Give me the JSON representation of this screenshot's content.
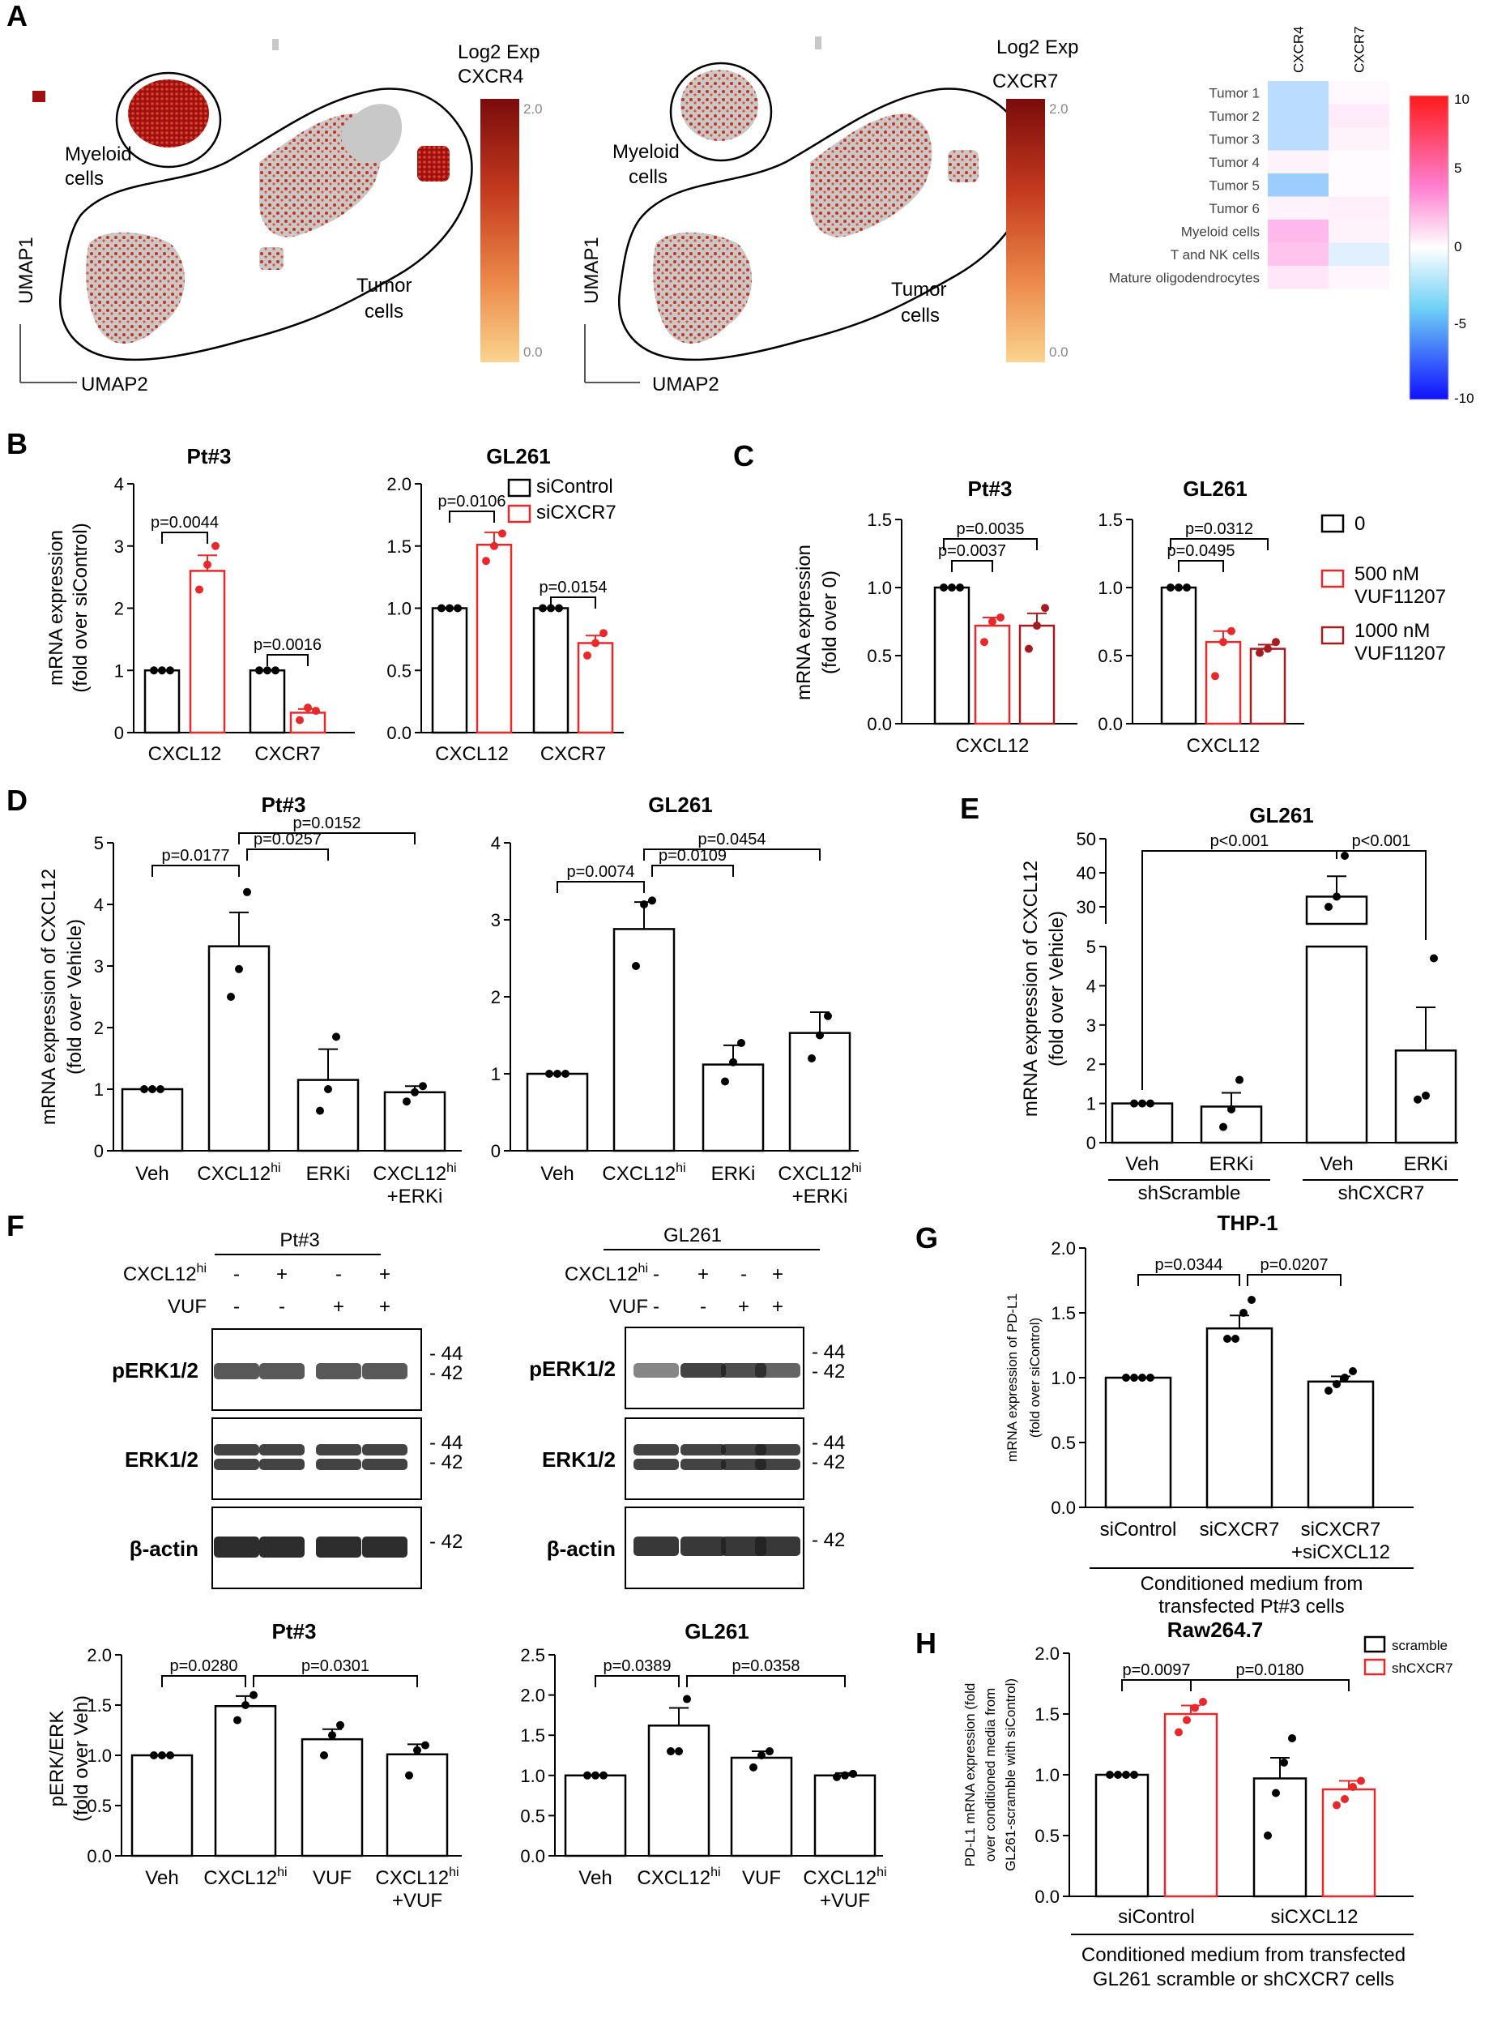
{
  "panel_labels": [
    "A",
    "B",
    "C",
    "D",
    "E",
    "F",
    "G",
    "H"
  ],
  "panelA": {
    "umap1": {
      "legend_title_1": "Log2 Exp",
      "legend_title_2": "CXCR4",
      "tick_max": "2.0",
      "tick_min": "0.0",
      "label_myeloid_1": "Myeloid",
      "label_myeloid_2": "cells",
      "label_tumor_1": "Tumor",
      "label_tumor_2": "cells",
      "axis_y": "UMAP1",
      "axis_x": "UMAP2"
    },
    "umap2": {
      "legend_title_1": "Log2 Exp",
      "legend_title_2": "CXCR7",
      "tick_max": "2.0",
      "tick_min": "0.0",
      "label_myeloid_1": "Myeloid",
      "label_myeloid_2": "cells",
      "label_tumor_1": "Tumor",
      "label_tumor_2": "cells",
      "axis_y": "UMAP1",
      "axis_x": "UMAP2"
    },
    "heatmap": {
      "columns": [
        "CXCR4",
        "CXCR7"
      ],
      "rows": [
        "Tumor 1",
        "Tumor 2",
        "Tumor 3",
        "Tumor 4",
        "Tumor 5",
        "Tumor 6",
        "Myeloid cells",
        "T and NK cells",
        "Mature oligodendrocytes"
      ],
      "values": [
        [
          -3.5,
          0.3
        ],
        [
          -3.5,
          1.0
        ],
        [
          -3.5,
          0.6
        ],
        [
          0.6,
          0.2
        ],
        [
          -5.0,
          0.2
        ],
        [
          0.6,
          0.8
        ],
        [
          3.5,
          0.6
        ],
        [
          3.0,
          -1.5
        ],
        [
          1.2,
          0.5
        ]
      ],
      "color_ticks": [
        "10",
        "5",
        "0",
        "-5",
        "-10"
      ]
    }
  },
  "chart_data": [
    {
      "id": "B1",
      "type": "bar",
      "title": "Pt#3",
      "ylabel": "mRNA expression",
      "ylabel2": "(fold over siControl)",
      "ylim": [
        0,
        4
      ],
      "yticks": [
        "0",
        "1",
        "2",
        "3",
        "4"
      ],
      "categories": [
        "CXCL12",
        "CXCR7"
      ],
      "series": [
        {
          "name": "siControl",
          "values": [
            1.0,
            1.0
          ]
        },
        {
          "name": "siCXCR7",
          "values": [
            2.6,
            0.32
          ]
        }
      ],
      "pvalues": [
        "p=0.0044",
        "p=0.0016"
      ]
    },
    {
      "id": "B2",
      "type": "bar",
      "title": "GL261",
      "ylim": [
        0,
        2
      ],
      "yticks": [
        "0.0",
        "0.5",
        "1.0",
        "1.5",
        "2.0"
      ],
      "categories": [
        "CXCL12",
        "CXCR7"
      ],
      "series": [
        {
          "name": "siControl",
          "values": [
            1.0,
            1.0
          ]
        },
        {
          "name": "siCXCR7",
          "values": [
            1.51,
            0.72
          ]
        }
      ],
      "pvalues": [
        "p=0.0106",
        "p=0.0154"
      ],
      "legend": [
        "siControl",
        "siCXCR7"
      ]
    },
    {
      "id": "C1",
      "type": "bar",
      "title": "Pt#3",
      "ylabel": "mRNA expression",
      "ylabel2": "(fold over 0)",
      "ylim": [
        0,
        1.5
      ],
      "yticks": [
        "0.0",
        "0.5",
        "1.0",
        "1.5"
      ],
      "categories": [
        "CXCL12"
      ],
      "series": [
        {
          "name": "0",
          "values": [
            1.0
          ]
        },
        {
          "name": "500 nM VUF11207",
          "values": [
            0.72
          ]
        },
        {
          "name": "1000 nM VUF11207",
          "values": [
            0.72
          ]
        }
      ],
      "pvalues": [
        "p=0.0037",
        "p=0.0035"
      ]
    },
    {
      "id": "C2",
      "type": "bar",
      "title": "GL261",
      "ylim": [
        0,
        1.5
      ],
      "yticks": [
        "0.0",
        "0.5",
        "1.0",
        "1.5"
      ],
      "categories": [
        "CXCL12"
      ],
      "series": [
        {
          "name": "0",
          "values": [
            1.0
          ]
        },
        {
          "name": "500 nM VUF11207",
          "values": [
            0.6
          ]
        },
        {
          "name": "1000 nM VUF11207",
          "values": [
            0.55
          ]
        }
      ],
      "pvalues": [
        "p=0.0495",
        "p=0.0312"
      ],
      "legend": [
        "0",
        "500 nM",
        "VUF11207",
        "1000 nM",
        "VUF11207"
      ]
    },
    {
      "id": "D1",
      "type": "bar",
      "title": "Pt#3",
      "ylabel": "mRNA expression of CXCL12",
      "ylabel2": "(fold over Vehicle)",
      "ylim": [
        0,
        5
      ],
      "yticks": [
        "0",
        "1",
        "2",
        "3",
        "4",
        "5"
      ],
      "categories": [
        "Veh",
        "CXCL12hi",
        "ERKi",
        "CXCL12hi+ERKi"
      ],
      "values": [
        1.0,
        3.32,
        1.15,
        0.95
      ],
      "pvalues": [
        "p=0.0177",
        "p=0.0257",
        "p=0.0152"
      ]
    },
    {
      "id": "D2",
      "type": "bar",
      "title": "GL261",
      "ylim": [
        0,
        4
      ],
      "yticks": [
        "0",
        "1",
        "2",
        "3",
        "4"
      ],
      "categories": [
        "Veh",
        "CXCL12hi",
        "ERKi",
        "CXCL12hi+ERKi"
      ],
      "values": [
        1.0,
        2.88,
        1.12,
        1.53
      ],
      "pvalues": [
        "p=0.0074",
        "p=0.0109",
        "p=0.0454"
      ]
    },
    {
      "id": "E",
      "type": "bar",
      "title": "GL261",
      "ylabel": "mRNA expression of CXCL12",
      "ylabel2": "(fold over Vehicle)",
      "yticks_low": [
        "0",
        "1",
        "2",
        "3",
        "4",
        "5"
      ],
      "yticks_high": [
        "30",
        "40",
        "50"
      ],
      "categories": [
        "Veh",
        "ERKi",
        "Veh",
        "ERKi"
      ],
      "groups": [
        "shScramble",
        "shCXCR7"
      ],
      "values": [
        1.0,
        0.92,
        33,
        2.35
      ],
      "pvalues": [
        "p<0.001",
        "p<0.001"
      ]
    },
    {
      "id": "F1",
      "type": "bar",
      "title": "Pt#3",
      "ylabel": "pERK/ERK",
      "ylabel2": "(fold over Veh)",
      "ylim": [
        0,
        2
      ],
      "yticks": [
        "0.0",
        "0.5",
        "1.0",
        "1.5",
        "2.0"
      ],
      "categories": [
        "Veh",
        "CXCL12hi",
        "VUF",
        "CXCL12hi+VUF"
      ],
      "values": [
        1.0,
        1.49,
        1.16,
        1.01
      ],
      "pvalues": [
        "p=0.0280",
        "p=0.0301"
      ]
    },
    {
      "id": "F2",
      "type": "bar",
      "title": "GL261",
      "ylim": [
        0,
        2.5
      ],
      "yticks": [
        "0.0",
        "0.5",
        "1.0",
        "1.5",
        "2.0",
        "2.5"
      ],
      "categories": [
        "Veh",
        "CXCL12hi",
        "VUF",
        "CXCL12hi+VUF"
      ],
      "values": [
        1.0,
        1.62,
        1.22,
        1.0
      ],
      "pvalues": [
        "p=0.0389",
        "p=0.0358"
      ]
    },
    {
      "id": "G",
      "type": "bar",
      "title": "THP-1",
      "ylabel": "mRNA expression of PD-L1",
      "ylabel2": "(fold over siControl)",
      "ylim": [
        0,
        2
      ],
      "yticks": [
        "0.0",
        "0.5",
        "1.0",
        "1.5",
        "2.0"
      ],
      "categories": [
        "siControl",
        "siCXCR7",
        "siCXCR7+siCXCL12"
      ],
      "values": [
        1.0,
        1.38,
        0.97
      ],
      "pvalues": [
        "p=0.0344",
        "p=0.0207"
      ],
      "footer": [
        "Conditioned medium from",
        "transfected Pt#3 cells"
      ]
    },
    {
      "id": "H",
      "type": "bar",
      "title": "Raw264.7",
      "ylabel": "PD-L1 mRNA expression (fold",
      "ylabel2": "over conditioned media from",
      "ylabel3": "GL261-scramble with siControl)",
      "ylim": [
        0,
        2
      ],
      "yticks": [
        "0.0",
        "0.5",
        "1.0",
        "1.5",
        "2.0"
      ],
      "categories": [
        "siControl",
        "siCXCL12"
      ],
      "series": [
        {
          "name": "scramble",
          "values": [
            1.0,
            0.97
          ]
        },
        {
          "name": "shCXCR7",
          "values": [
            1.5,
            0.88
          ]
        }
      ],
      "pvalues": [
        "p=0.0097",
        "p=0.0180"
      ],
      "legend": [
        "scramble",
        "shCXCR7"
      ],
      "footer": [
        "Conditioned medium from transfected",
        "GL261 scramble or shCXCR7 cells"
      ]
    }
  ],
  "panelF_blots": {
    "pt3": {
      "title": "Pt#3",
      "row1": "CXCL12hi",
      "row2": "VUF",
      "cxcl12_signs": [
        "-",
        "+",
        "-",
        "+"
      ],
      "vuf_signs": [
        "-",
        "-",
        "+",
        "+"
      ],
      "bands": [
        "pERK1/2",
        "ERK1/2",
        "β-actin"
      ],
      "mw_44": "44",
      "mw_42": "42"
    },
    "gl261": {
      "title": "GL261",
      "row1": "CXCL12hi",
      "row2": "VUF",
      "cxcl12_signs": [
        "-",
        "+",
        "-",
        "+"
      ],
      "vuf_signs": [
        "-",
        "-",
        "+",
        "+"
      ],
      "bands": [
        "pERK1/2",
        "ERK1/2",
        "β-actin"
      ],
      "mw_44": "44",
      "mw_42": "42"
    }
  },
  "colors": {
    "red": "#e8282b",
    "darkred": "#a61b1f",
    "black": "#000000"
  }
}
